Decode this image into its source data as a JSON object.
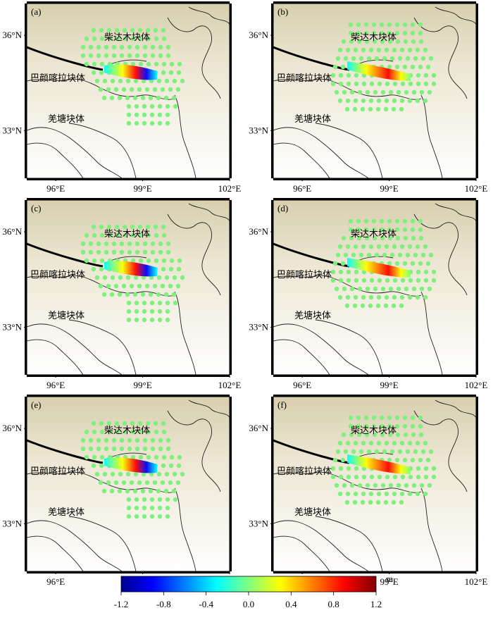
{
  "panels": [
    {
      "id": "a",
      "label": "(a)",
      "variant": "a"
    },
    {
      "id": "b",
      "label": "(b)",
      "variant": "b"
    },
    {
      "id": "c",
      "label": "(c)",
      "variant": "a"
    },
    {
      "id": "d",
      "label": "(d)",
      "variant": "b"
    },
    {
      "id": "e",
      "label": "(e)",
      "variant": "a"
    },
    {
      "id": "f",
      "label": "(f)",
      "variant": "b"
    }
  ],
  "map": {
    "lon_range": [
      95,
      102
    ],
    "lat_range": [
      31.5,
      37
    ],
    "x_ticks": [
      "96°E",
      "99°E",
      "102°E"
    ],
    "y_ticks": [
      "36°N",
      "33°N"
    ],
    "block_labels": {
      "qaidam": "柴达木块体",
      "bayan_har": "巴颜喀拉块体",
      "qiangtang": "羌塘块体"
    },
    "point_color": "#7df07d"
  },
  "colorbar": {
    "unit": "m",
    "min": -1.2,
    "max": 1.2,
    "tick_labels": [
      "-1.2",
      "-0.8",
      "-0.4",
      "0.0",
      "0.4",
      "0.8",
      "1.2"
    ],
    "colors": [
      "#00008f",
      "#0000ff",
      "#0080ff",
      "#00ffff",
      "#80ff80",
      "#ffff00",
      "#ff8000",
      "#ff0000",
      "#800000"
    ]
  }
}
